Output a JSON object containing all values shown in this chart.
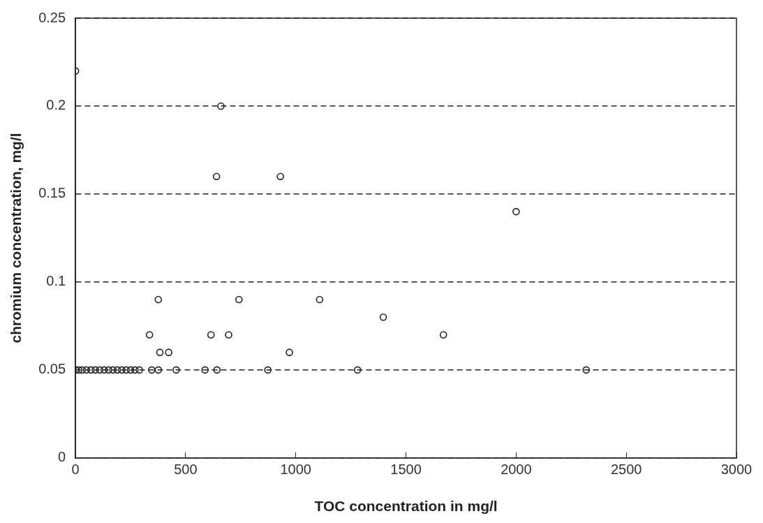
{
  "chart_data": {
    "type": "scatter",
    "xlabel": "TOC concentration in mg/l",
    "ylabel": "chromium concentration, mg/l",
    "x": [
      0,
      660,
      640,
      930,
      2000,
      376,
      742,
      1108,
      1397,
      336,
      615,
      695,
      1670,
      383,
      423,
      971,
      0,
      15,
      30,
      50,
      70,
      90,
      110,
      130,
      150,
      170,
      190,
      210,
      230,
      250,
      270,
      290,
      346,
      376,
      457,
      588,
      642,
      873,
      1280,
      2318
    ],
    "series": [
      {
        "color": "#222222",
        "values": [
          0.22,
          0.2,
          0.16,
          0.16,
          0.14,
          0.09,
          0.09,
          0.09,
          0.08,
          0.07,
          0.07,
          0.07,
          0.07,
          0.06,
          0.06,
          0.06,
          0.05,
          0.05,
          0.05,
          0.05,
          0.05,
          0.05,
          0.05,
          0.05,
          0.05,
          0.05,
          0.05,
          0.05,
          0.05,
          0.05,
          0.05,
          0.05,
          0.05,
          0.05,
          0.05,
          0.05,
          0.05,
          0.05,
          0.05,
          0.05
        ]
      }
    ],
    "xlim": [
      0,
      3000
    ],
    "xticks": [
      0,
      500,
      1000,
      1500,
      2000,
      2500,
      3000
    ],
    "ylim": [
      0,
      0.25
    ],
    "yticks": [
      0,
      0.05,
      0.1,
      0.15,
      0.2,
      0.25
    ],
    "grid": "y",
    "line_style": "dashed",
    "marker": "circle",
    "legend": false
  }
}
